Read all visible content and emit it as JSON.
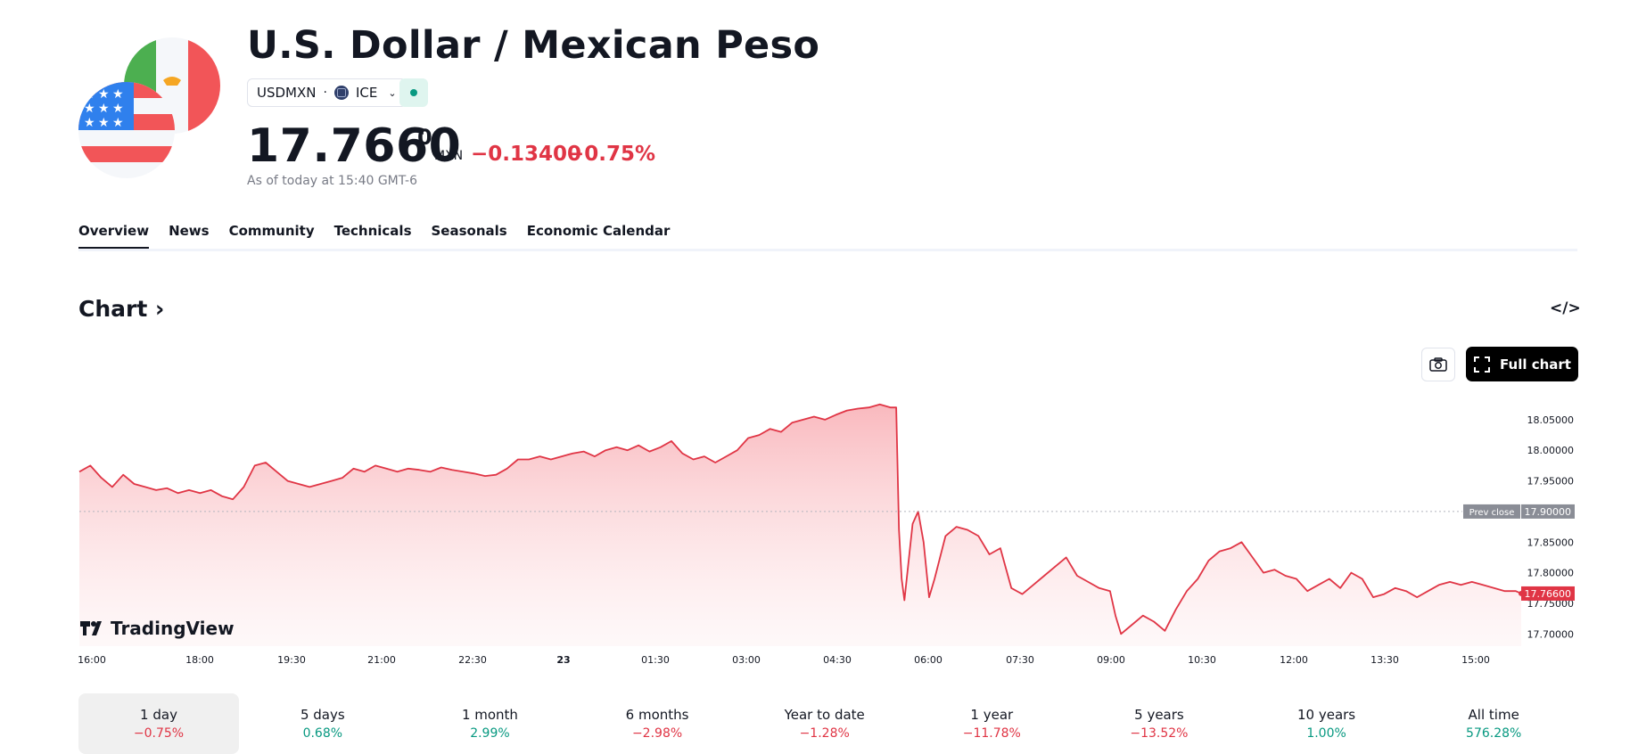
{
  "header": {
    "title": "U.S. Dollar / Mexican Peso",
    "symbol": "USDMXN",
    "exchange": "ICE",
    "price_main": "17.7660",
    "price_sup": "0",
    "currency": "MXN",
    "change": "−0.13400",
    "change_pct": "−0.75%",
    "as_of": "As of today at 15:40 GMT-6"
  },
  "tabs": [
    {
      "label": "Overview",
      "active": true
    },
    {
      "label": "News"
    },
    {
      "label": "Community"
    },
    {
      "label": "Technicals"
    },
    {
      "label": "Seasonals"
    },
    {
      "label": "Economic Calendar"
    }
  ],
  "chart_section": {
    "heading": "Chart",
    "full_chart_label": "Full chart",
    "embed_icon": "code-embed-icon",
    "camera_icon": "camera-icon",
    "logo_text": "TradingView"
  },
  "colors": {
    "accent_negative": "#e03545",
    "accent_positive": "#089981",
    "line": "#e03545"
  },
  "chart_data": {
    "type": "area",
    "x_ticks": [
      "16:00",
      "18:00",
      "19:30",
      "21:00",
      "22:30",
      "23",
      "01:30",
      "03:00",
      "04:30",
      "06:00",
      "07:30",
      "09:00",
      "10:30",
      "12:00",
      "13:30",
      "15:00"
    ],
    "y_ticks": [
      "18.05000",
      "18.00000",
      "17.95000",
      "17.85000",
      "17.80000",
      "17.75000",
      "17.70000"
    ],
    "ylim": [
      17.68,
      18.095
    ],
    "prev_close_label": "Prev close",
    "prev_close_value": "17.90000",
    "last_value_label": "17.76600",
    "series": [
      {
        "points": [
          [
            0.0,
            17.965
          ],
          [
            0.2,
            17.975
          ],
          [
            0.4,
            17.955
          ],
          [
            0.6,
            17.94
          ],
          [
            0.8,
            17.96
          ],
          [
            1.0,
            17.945
          ],
          [
            1.2,
            17.94
          ],
          [
            1.4,
            17.935
          ],
          [
            1.6,
            17.938
          ],
          [
            1.8,
            17.93
          ],
          [
            2.0,
            17.935
          ],
          [
            2.2,
            17.93
          ],
          [
            2.4,
            17.935
          ],
          [
            2.6,
            17.925
          ],
          [
            2.8,
            17.92
          ],
          [
            3.0,
            17.94
          ],
          [
            3.2,
            17.975
          ],
          [
            3.4,
            17.98
          ],
          [
            3.6,
            17.965
          ],
          [
            3.8,
            17.95
          ],
          [
            4.0,
            17.945
          ],
          [
            4.2,
            17.94
          ],
          [
            4.4,
            17.945
          ],
          [
            4.6,
            17.95
          ],
          [
            4.8,
            17.955
          ],
          [
            5.0,
            17.97
          ],
          [
            5.2,
            17.965
          ],
          [
            5.4,
            17.975
          ],
          [
            5.6,
            17.97
          ],
          [
            5.8,
            17.965
          ],
          [
            6.0,
            17.97
          ],
          [
            6.2,
            17.968
          ],
          [
            6.4,
            17.965
          ],
          [
            6.6,
            17.972
          ],
          [
            6.8,
            17.968
          ],
          [
            7.0,
            17.965
          ],
          [
            7.2,
            17.962
          ],
          [
            7.4,
            17.958
          ],
          [
            7.6,
            17.96
          ],
          [
            7.8,
            17.97
          ],
          [
            8.0,
            17.985
          ],
          [
            8.2,
            17.985
          ],
          [
            8.4,
            17.99
          ],
          [
            8.6,
            17.985
          ],
          [
            8.8,
            17.99
          ],
          [
            9.0,
            17.995
          ],
          [
            9.2,
            17.998
          ],
          [
            9.4,
            17.99
          ],
          [
            9.6,
            18.0
          ],
          [
            9.8,
            18.005
          ],
          [
            10.0,
            18.0
          ],
          [
            10.2,
            18.008
          ],
          [
            10.4,
            17.998
          ],
          [
            10.6,
            18.005
          ],
          [
            10.8,
            18.015
          ],
          [
            11.0,
            17.995
          ],
          [
            11.2,
            17.985
          ],
          [
            11.4,
            17.99
          ],
          [
            11.6,
            17.98
          ],
          [
            11.8,
            17.99
          ],
          [
            12.0,
            18.0
          ],
          [
            12.2,
            18.02
          ],
          [
            12.4,
            18.025
          ],
          [
            12.6,
            18.035
          ],
          [
            12.8,
            18.03
          ],
          [
            13.0,
            18.045
          ],
          [
            13.2,
            18.05
          ],
          [
            13.4,
            18.055
          ],
          [
            13.6,
            18.05
          ],
          [
            13.8,
            18.058
          ],
          [
            14.0,
            18.065
          ],
          [
            14.2,
            18.068
          ],
          [
            14.4,
            18.07
          ],
          [
            14.6,
            18.075
          ],
          [
            14.8,
            18.07
          ],
          [
            14.9,
            18.07
          ],
          [
            14.95,
            17.87
          ],
          [
            15.0,
            17.79
          ],
          [
            15.05,
            17.755
          ],
          [
            15.2,
            17.88
          ],
          [
            15.3,
            17.9
          ],
          [
            15.4,
            17.85
          ],
          [
            15.5,
            17.76
          ],
          [
            15.6,
            17.79
          ],
          [
            15.8,
            17.86
          ],
          [
            16.0,
            17.875
          ],
          [
            16.2,
            17.87
          ],
          [
            16.4,
            17.86
          ],
          [
            16.6,
            17.83
          ],
          [
            16.8,
            17.84
          ],
          [
            17.0,
            17.775
          ],
          [
            17.2,
            17.765
          ],
          [
            17.4,
            17.78
          ],
          [
            17.6,
            17.795
          ],
          [
            17.8,
            17.81
          ],
          [
            18.0,
            17.825
          ],
          [
            18.2,
            17.795
          ],
          [
            18.4,
            17.785
          ],
          [
            18.6,
            17.775
          ],
          [
            18.8,
            17.77
          ],
          [
            18.9,
            17.73
          ],
          [
            19.0,
            17.7
          ],
          [
            19.2,
            17.715
          ],
          [
            19.4,
            17.73
          ],
          [
            19.6,
            17.72
          ],
          [
            19.8,
            17.705
          ],
          [
            20.0,
            17.74
          ],
          [
            20.2,
            17.77
          ],
          [
            20.4,
            17.79
          ],
          [
            20.6,
            17.82
          ],
          [
            20.8,
            17.835
          ],
          [
            21.0,
            17.84
          ],
          [
            21.2,
            17.85
          ],
          [
            21.4,
            17.825
          ],
          [
            21.6,
            17.8
          ],
          [
            21.8,
            17.805
          ],
          [
            22.0,
            17.795
          ],
          [
            22.2,
            17.79
          ],
          [
            22.4,
            17.77
          ],
          [
            22.6,
            17.78
          ],
          [
            22.8,
            17.79
          ],
          [
            23.0,
            17.775
          ],
          [
            23.2,
            17.8
          ],
          [
            23.4,
            17.79
          ],
          [
            23.6,
            17.76
          ],
          [
            23.8,
            17.765
          ],
          [
            24.0,
            17.775
          ],
          [
            24.2,
            17.77
          ],
          [
            24.4,
            17.76
          ],
          [
            24.6,
            17.77
          ],
          [
            24.8,
            17.78
          ],
          [
            25.0,
            17.785
          ],
          [
            25.2,
            17.78
          ],
          [
            25.4,
            17.785
          ],
          [
            25.6,
            17.78
          ],
          [
            25.8,
            17.775
          ],
          [
            26.0,
            17.77
          ],
          [
            26.2,
            17.77
          ],
          [
            26.3,
            17.766
          ]
        ]
      }
    ]
  },
  "periods": [
    {
      "label": "1 day",
      "value": "−0.75%",
      "sign": "neg",
      "active": true
    },
    {
      "label": "5 days",
      "value": "0.68%",
      "sign": "pos"
    },
    {
      "label": "1 month",
      "value": "2.99%",
      "sign": "pos"
    },
    {
      "label": "6 months",
      "value": "−2.98%",
      "sign": "neg"
    },
    {
      "label": "Year to date",
      "value": "−1.28%",
      "sign": "neg"
    },
    {
      "label": "1 year",
      "value": "−11.78%",
      "sign": "neg"
    },
    {
      "label": "5 years",
      "value": "−13.52%",
      "sign": "neg"
    },
    {
      "label": "10 years",
      "value": "1.00%",
      "sign": "pos"
    },
    {
      "label": "All time",
      "value": "576.28%",
      "sign": "pos"
    }
  ]
}
